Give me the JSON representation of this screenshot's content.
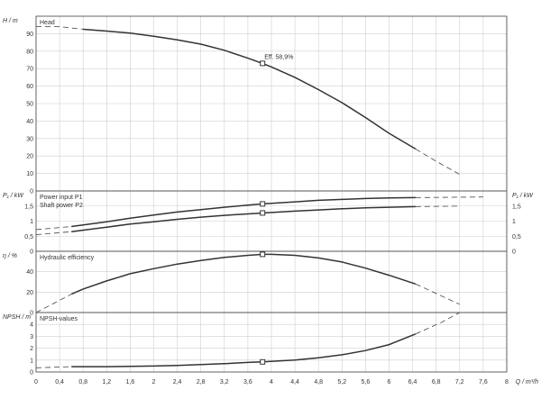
{
  "chart_data": {
    "type": "line",
    "x_label": "Q / m³/h",
    "x_ticks": [
      "0",
      "0,4",
      "0,8",
      "1,2",
      "1,6",
      "2",
      "2,4",
      "2,8",
      "3,2",
      "3,6",
      "4",
      "4,4",
      "4,8",
      "5,2",
      "5,6",
      "6",
      "6,4",
      "6,8",
      "7,2",
      "7,6",
      "8"
    ],
    "xlim": [
      0,
      8
    ],
    "duty_point_q": 3.85,
    "panels": [
      {
        "name": "head",
        "ylabel": "H / m",
        "ylim": [
          0,
          100
        ],
        "y_ticks": [
          0,
          10,
          20,
          30,
          40,
          50,
          60,
          70,
          80,
          90
        ],
        "y_tick_labels": [
          "0",
          "10",
          "20",
          "30",
          "40",
          "50",
          "60",
          "70",
          "80",
          "90"
        ],
        "legend": [
          "Head"
        ],
        "annotation": "Eff.  58,9%",
        "series": [
          {
            "name": "Head",
            "solid": [
              [
                0.8,
                92.5
              ],
              [
                1.2,
                91.5
              ],
              [
                1.6,
                90.3
              ],
              [
                2.0,
                88.5
              ],
              [
                2.4,
                86.5
              ],
              [
                2.8,
                84
              ],
              [
                3.2,
                80.5
              ],
              [
                3.6,
                76
              ],
              [
                3.85,
                73
              ],
              [
                4.0,
                71
              ],
              [
                4.4,
                65
              ],
              [
                4.8,
                58
              ],
              [
                5.2,
                50.5
              ],
              [
                5.6,
                42
              ],
              [
                6.0,
                33
              ],
              [
                6.45,
                24
              ]
            ],
            "dashed": [
              [
                0,
                94
              ],
              [
                0.4,
                94
              ],
              [
                0.8,
                92.5
              ]
            ],
            "dashed_end": [
              [
                6.45,
                24
              ],
              [
                6.8,
                17
              ],
              [
                7.2,
                9.5
              ]
            ]
          }
        ]
      },
      {
        "name": "power",
        "ylabel": "P₁ / kW",
        "ylabel_right": "P₁ / kW",
        "ylim": [
          0,
          2
        ],
        "y_ticks": [
          0,
          0.5,
          1,
          1.5
        ],
        "y_tick_labels": [
          "0",
          "0,5",
          "1",
          "1,5"
        ],
        "legend": [
          "Power input P1",
          "Shaft power P2"
        ],
        "series": [
          {
            "name": "Power input P1",
            "solid": [
              [
                0.6,
                0.82
              ],
              [
                1.2,
                0.98
              ],
              [
                1.6,
                1.1
              ],
              [
                2.0,
                1.2
              ],
              [
                2.4,
                1.3
              ],
              [
                2.8,
                1.38
              ],
              [
                3.2,
                1.46
              ],
              [
                3.6,
                1.53
              ],
              [
                3.85,
                1.57
              ],
              [
                4.4,
                1.64
              ],
              [
                4.8,
                1.69
              ],
              [
                5.2,
                1.72
              ],
              [
                5.6,
                1.75
              ],
              [
                6.0,
                1.77
              ],
              [
                6.45,
                1.78
              ]
            ],
            "dashed": [
              [
                0,
                0.72
              ],
              [
                0.6,
                0.82
              ]
            ],
            "dashed_end": [
              [
                6.45,
                1.78
              ],
              [
                7.6,
                1.8
              ]
            ]
          },
          {
            "name": "Shaft power P2",
            "solid": [
              [
                0.6,
                0.65
              ],
              [
                1.2,
                0.8
              ],
              [
                1.6,
                0.9
              ],
              [
                2.0,
                0.98
              ],
              [
                2.4,
                1.06
              ],
              [
                2.8,
                1.13
              ],
              [
                3.2,
                1.19
              ],
              [
                3.6,
                1.24
              ],
              [
                3.85,
                1.27
              ],
              [
                4.4,
                1.33
              ],
              [
                4.8,
                1.37
              ],
              [
                5.2,
                1.41
              ],
              [
                5.6,
                1.44
              ],
              [
                6.0,
                1.46
              ],
              [
                6.45,
                1.48
              ]
            ],
            "dashed": [
              [
                0,
                0.55
              ],
              [
                0.6,
                0.65
              ]
            ],
            "dashed_end": [
              [
                6.45,
                1.48
              ],
              [
                7.2,
                1.5
              ]
            ]
          }
        ]
      },
      {
        "name": "efficiency",
        "ylabel": "η / %",
        "ylim": [
          0,
          60
        ],
        "y_ticks": [
          0,
          20,
          40
        ],
        "y_tick_labels": [
          "0",
          "20",
          "40"
        ],
        "legend": [
          "Hydraulic efficiency"
        ],
        "series": [
          {
            "name": "Hydraulic efficiency",
            "solid": [
              [
                0.6,
                18
              ],
              [
                0.8,
                23
              ],
              [
                1.2,
                31
              ],
              [
                1.6,
                38
              ],
              [
                2.0,
                43
              ],
              [
                2.4,
                47.5
              ],
              [
                2.8,
                51
              ],
              [
                3.2,
                54
              ],
              [
                3.6,
                56
              ],
              [
                3.85,
                57
              ],
              [
                4.0,
                57
              ],
              [
                4.4,
                56
              ],
              [
                4.8,
                53.5
              ],
              [
                5.2,
                49.5
              ],
              [
                5.6,
                43.5
              ],
              [
                6.0,
                36.5
              ],
              [
                6.45,
                28
              ]
            ],
            "dashed": [
              [
                0,
                0
              ],
              [
                0.3,
                9
              ],
              [
                0.6,
                18
              ]
            ],
            "dashed_end": [
              [
                6.45,
                28
              ],
              [
                7.2,
                8
              ]
            ]
          }
        ]
      },
      {
        "name": "npsh",
        "ylabel": "NPSH / m",
        "ylim": [
          0,
          5
        ],
        "y_ticks": [
          0,
          1,
          2,
          3,
          4
        ],
        "y_tick_labels": [
          "0",
          "1",
          "2",
          "3",
          "4"
        ],
        "legend": [
          "NPSH-values"
        ],
        "series": [
          {
            "name": "NPSH-values",
            "solid": [
              [
                0.6,
                0.45
              ],
              [
                1.2,
                0.45
              ],
              [
                1.6,
                0.47
              ],
              [
                2.0,
                0.5
              ],
              [
                2.4,
                0.55
              ],
              [
                2.8,
                0.62
              ],
              [
                3.2,
                0.7
              ],
              [
                3.6,
                0.8
              ],
              [
                3.85,
                0.85
              ],
              [
                4.4,
                1.0
              ],
              [
                4.8,
                1.2
              ],
              [
                5.2,
                1.45
              ],
              [
                5.6,
                1.8
              ],
              [
                6.0,
                2.3
              ],
              [
                6.45,
                3.2
              ]
            ],
            "dashed": [
              [
                0,
                0.35
              ],
              [
                0.6,
                0.45
              ]
            ],
            "dashed_end": [
              [
                6.45,
                3.2
              ],
              [
                6.9,
                4.2
              ],
              [
                7.2,
                5.0
              ]
            ]
          }
        ]
      }
    ]
  }
}
